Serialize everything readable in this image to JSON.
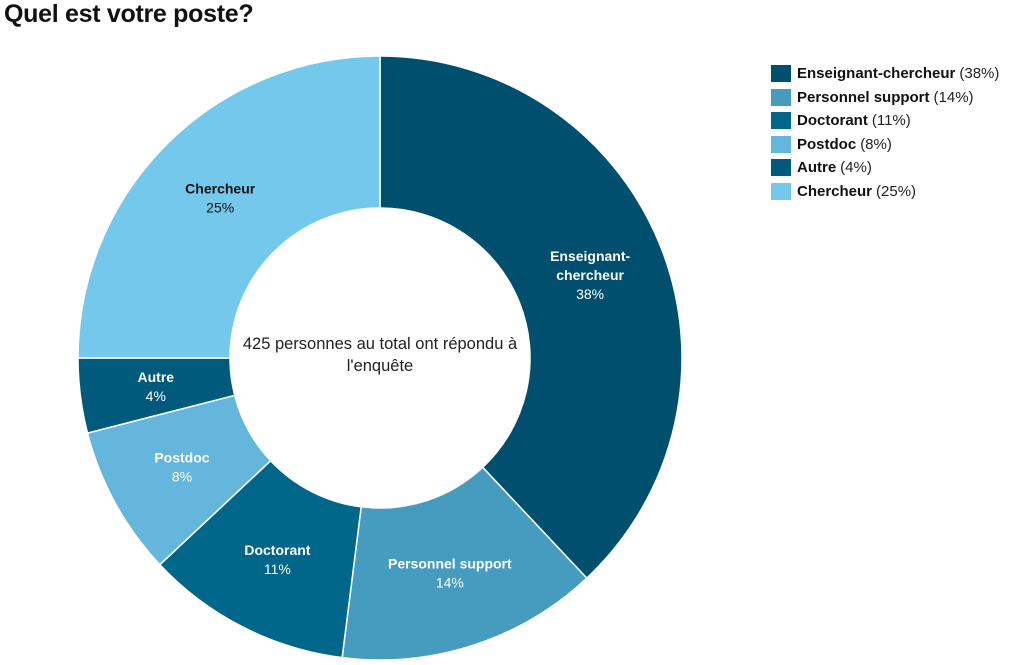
{
  "title": "Quel est votre poste?",
  "center_text": "425 personnes au total ont répondu à l'enquête",
  "chart_data": {
    "type": "pie",
    "title": "Quel est votre poste?",
    "total_respondents": 425,
    "slices": [
      {
        "name": "Enseignant-chercheur",
        "label_lines": [
          "Enseignant-",
          "chercheur"
        ],
        "value": 38,
        "pct_label": "38%",
        "legend_pct": "(38%)",
        "color": "#004f6e",
        "label_color": "#ffffff"
      },
      {
        "name": "Personnel support",
        "label_lines": [
          "Personnel support"
        ],
        "value": 14,
        "pct_label": "14%",
        "legend_pct": "(14%)",
        "color": "#459cbf",
        "label_color": "#ffffff"
      },
      {
        "name": "Doctorant",
        "label_lines": [
          "Doctorant"
        ],
        "value": 11,
        "pct_label": "11%",
        "legend_pct": "(11%)",
        "color": "#00678a",
        "label_color": "#ffffff"
      },
      {
        "name": "Postdoc",
        "label_lines": [
          "Postdoc"
        ],
        "value": 8,
        "pct_label": "8%",
        "legend_pct": "(8%)",
        "color": "#65b6dc",
        "label_color": "#ffffff"
      },
      {
        "name": "Autre",
        "label_lines": [
          "Autre"
        ],
        "value": 4,
        "pct_label": "4%",
        "legend_pct": "(4%)",
        "color": "#005a7c",
        "label_color": "#ffffff"
      },
      {
        "name": "Chercheur",
        "label_lines": [
          "Chercheur"
        ],
        "value": 25,
        "pct_label": "25%",
        "legend_pct": "(25%)",
        "color": "#74c8ec",
        "label_color": "#111111"
      }
    ],
    "legend_position": "top-right"
  }
}
